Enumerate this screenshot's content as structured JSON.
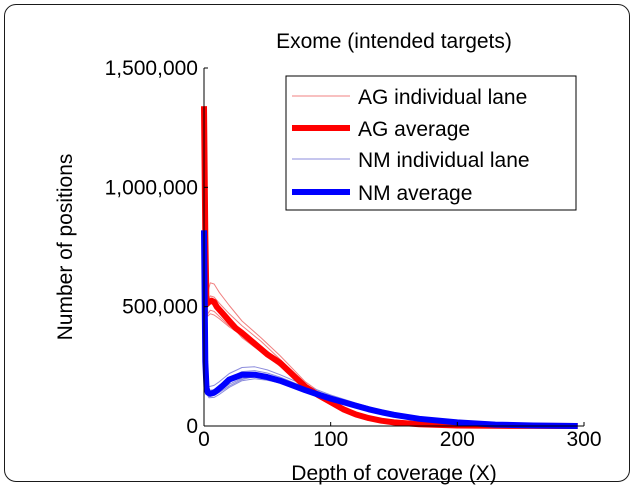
{
  "chart_data": {
    "type": "line",
    "title": "Exome (intended targets)",
    "xlabel": "Depth of coverage (X)",
    "ylabel": "Number of positions",
    "xlim": [
      0,
      300
    ],
    "ylim": [
      0,
      1500000
    ],
    "xticks": [
      0,
      100,
      200,
      300
    ],
    "xtick_labels": [
      "0",
      "100",
      "200",
      "300"
    ],
    "yticks": [
      0,
      500000,
      1000000,
      1500000
    ],
    "ytick_labels": [
      "0",
      "500,000",
      "1,000,000",
      "1,500,000"
    ],
    "legend_position": "top-right",
    "grid": false,
    "colors": {
      "ag_lane": "#f08080",
      "ag_avg": "#ff0000",
      "nm_lane": "#8c8cdc",
      "nm_avg": "#0000ff"
    },
    "series": [
      {
        "name": "AG average",
        "role": "average",
        "color": "#ff0000",
        "x": [
          0,
          1,
          2,
          4,
          6,
          8,
          10,
          15,
          20,
          25,
          30,
          40,
          50,
          60,
          70,
          80,
          90,
          100,
          110,
          120,
          130,
          140,
          150,
          170,
          200,
          230,
          260,
          295
        ],
        "y": [
          1340000,
          800000,
          510000,
          520000,
          525000,
          520000,
          500000,
          470000,
          440000,
          410000,
          390000,
          345000,
          300000,
          265000,
          215000,
          165000,
          130000,
          100000,
          70000,
          48000,
          33000,
          22000,
          15000,
          7000,
          2000,
          800,
          300,
          0
        ]
      },
      {
        "name": "NM average",
        "role": "average",
        "color": "#0000ff",
        "x": [
          0,
          1,
          2,
          3,
          5,
          8,
          10,
          15,
          20,
          30,
          40,
          50,
          60,
          70,
          80,
          90,
          100,
          110,
          120,
          130,
          140,
          150,
          170,
          200,
          230,
          260,
          295
        ],
        "y": [
          820000,
          270000,
          160000,
          140000,
          135000,
          140000,
          148000,
          170000,
          195000,
          215000,
          215000,
          205000,
          190000,
          170000,
          150000,
          132000,
          115000,
          100000,
          85000,
          70000,
          58000,
          47000,
          30000,
          15000,
          6000,
          2000,
          0
        ]
      }
    ],
    "individual_lanes": [
      {
        "name": "AG individual lane",
        "role": "lane",
        "color": "#f08080",
        "x": [
          1,
          3,
          5,
          8,
          12,
          20,
          30,
          45,
          60,
          80,
          100,
          120,
          140,
          170,
          200,
          250,
          295
        ],
        "y": [
          900000,
          560000,
          600000,
          595000,
          560000,
          505000,
          440000,
          370000,
          295000,
          185000,
          110000,
          55000,
          25000,
          8000,
          2500,
          400,
          0
        ]
      },
      {
        "name": "",
        "role": "lane",
        "color": "#f08080",
        "x": [
          1,
          3,
          5,
          8,
          12,
          20,
          30,
          45,
          60,
          80,
          100,
          120,
          140,
          170,
          200,
          250,
          295
        ],
        "y": [
          760000,
          520000,
          545000,
          540000,
          515000,
          470000,
          420000,
          355000,
          280000,
          175000,
          105000,
          52000,
          24000,
          7500,
          2200,
          300,
          0
        ]
      },
      {
        "name": "",
        "role": "lane",
        "color": "#f08080",
        "x": [
          1,
          3,
          5,
          8,
          12,
          20,
          30,
          45,
          60,
          80,
          100,
          120,
          140,
          170,
          200,
          250,
          295
        ],
        "y": [
          700000,
          470000,
          485000,
          480000,
          460000,
          420000,
          385000,
          330000,
          262000,
          160000,
          95000,
          47000,
          21000,
          6500,
          1900,
          300,
          0
        ]
      },
      {
        "name": "",
        "role": "lane",
        "color": "#f08080",
        "x": [
          1,
          3,
          5,
          8,
          12,
          20,
          30,
          45,
          60,
          80,
          100,
          120,
          140,
          170,
          200,
          250,
          295
        ],
        "y": [
          820000,
          500000,
          515000,
          505000,
          480000,
          430000,
          370000,
          310000,
          250000,
          150000,
          90000,
          44000,
          19000,
          6000,
          1700,
          250,
          0
        ]
      },
      {
        "name": "",
        "role": "lane",
        "color": "#f08080",
        "x": [
          1,
          3,
          5,
          8,
          12,
          20,
          30,
          45,
          60,
          80,
          100,
          120,
          140,
          170,
          200,
          250,
          295
        ],
        "y": [
          640000,
          460000,
          470000,
          465000,
          450000,
          415000,
          380000,
          335000,
          270000,
          170000,
          100000,
          50000,
          22000,
          7000,
          2000,
          300,
          0
        ]
      },
      {
        "name": "NM individual lane",
        "role": "lane",
        "color": "#8c8cdc",
        "x": [
          1,
          2,
          4,
          8,
          12,
          20,
          30,
          40,
          50,
          60,
          80,
          100,
          120,
          140,
          170,
          200,
          250,
          295
        ],
        "y": [
          320000,
          180000,
          165000,
          170000,
          185000,
          220000,
          245000,
          248000,
          235000,
          215000,
          170000,
          130000,
          96000,
          66000,
          35000,
          17000,
          3000,
          0
        ]
      },
      {
        "name": "",
        "role": "lane",
        "color": "#8c8cdc",
        "x": [
          1,
          2,
          4,
          8,
          12,
          20,
          30,
          40,
          50,
          60,
          80,
          100,
          120,
          140,
          170,
          200,
          250,
          295
        ],
        "y": [
          260000,
          150000,
          130000,
          132000,
          145000,
          175000,
          200000,
          205000,
          198000,
          185000,
          150000,
          118000,
          88000,
          62000,
          33000,
          16000,
          3000,
          0
        ]
      },
      {
        "name": "",
        "role": "lane",
        "color": "#8c8cdc",
        "x": [
          1,
          2,
          4,
          8,
          12,
          20,
          30,
          40,
          50,
          60,
          80,
          100,
          120,
          140,
          170,
          200,
          250,
          295
        ],
        "y": [
          240000,
          135000,
          118000,
          120000,
          132000,
          162000,
          190000,
          198000,
          192000,
          180000,
          148000,
          116000,
          86000,
          60000,
          32000,
          15000,
          2800,
          0
        ]
      },
      {
        "name": "",
        "role": "lane",
        "color": "#8c8cdc",
        "x": [
          1,
          2,
          4,
          8,
          12,
          20,
          30,
          40,
          50,
          60,
          80,
          100,
          120,
          140,
          170,
          200,
          250,
          295
        ],
        "y": [
          290000,
          165000,
          150000,
          152000,
          165000,
          200000,
          228000,
          232000,
          222000,
          205000,
          162000,
          124000,
          92000,
          64000,
          34000,
          16500,
          3000,
          0
        ]
      },
      {
        "name": "",
        "role": "lane",
        "color": "#8c8cdc",
        "x": [
          1,
          2,
          4,
          8,
          12,
          20,
          30,
          40,
          50,
          60,
          80,
          100,
          120,
          140,
          170,
          200,
          250,
          295
        ],
        "y": [
          230000,
          140000,
          125000,
          128000,
          140000,
          168000,
          195000,
          208000,
          205000,
          195000,
          160000,
          126000,
          95000,
          67000,
          36000,
          18000,
          3500,
          0
        ]
      }
    ]
  },
  "legend": [
    {
      "label": "AG individual lane",
      "color": "#f08080",
      "weight": "thin"
    },
    {
      "label": "AG average",
      "color": "#ff0000",
      "weight": "thick"
    },
    {
      "label": "NM individual lane",
      "color": "#8c8cdc",
      "weight": "thin"
    },
    {
      "label": "NM average",
      "color": "#0000ff",
      "weight": "thick"
    }
  ]
}
